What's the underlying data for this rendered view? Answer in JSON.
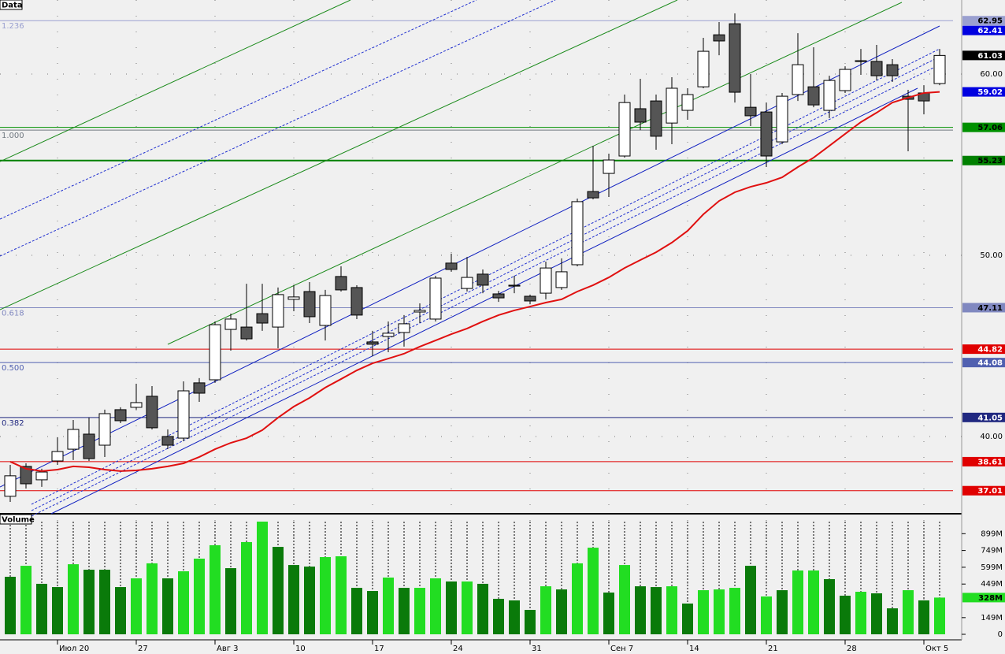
{
  "chart_data": [
    {
      "type": "candlestick",
      "title": "Data",
      "categories": [
        null,
        null,
        null,
        "Июл 20",
        null,
        null,
        null,
        null,
        "27",
        null,
        null,
        null,
        null,
        "Авг 3",
        null,
        null,
        null,
        null,
        "10",
        null,
        null,
        null,
        null,
        "17",
        null,
        null,
        null,
        null,
        "24",
        null,
        null,
        null,
        null,
        "31",
        null,
        null,
        null,
        null,
        "Сен 7",
        null,
        null,
        null,
        null,
        "14",
        null,
        null,
        null,
        null,
        "21",
        null,
        null,
        null,
        null,
        "28",
        null,
        null,
        null,
        null,
        "Окт 5",
        null
      ],
      "open": [
        36.7,
        38.35,
        37.61,
        38.65,
        39.3,
        40.13,
        39.52,
        41.48,
        41.61,
        42.22,
        40.0,
        39.91,
        42.96,
        43.13,
        45.91,
        46.04,
        46.78,
        46.04,
        47.57,
        48.0,
        46.13,
        48.83,
        48.22,
        45.22,
        45.52,
        45.74,
        46.87,
        46.48,
        49.57,
        48.17,
        48.96,
        47.87,
        48.35,
        47.74,
        47.91,
        48.22,
        49.48,
        53.52,
        54.52,
        55.48,
        58.09,
        58.52,
        57.3,
        58.0,
        59.3,
        62.17,
        62.78,
        58.17,
        57.91,
        56.26,
        58.87,
        59.3,
        58.0,
        59.09,
        60.74,
        60.7,
        60.52,
        58.78,
        58.96,
        59.48
      ],
      "high": [
        38.43,
        38.52,
        38.22,
        39.96,
        40.91,
        41.04,
        41.48,
        41.61,
        42.91,
        42.78,
        40.39,
        43.04,
        43.22,
        46.35,
        46.78,
        48.43,
        48.43,
        48.22,
        48.35,
        48.52,
        48.09,
        49.39,
        48.35,
        45.83,
        46.35,
        46.7,
        47.35,
        48.87,
        50.09,
        49.91,
        49.22,
        48.04,
        48.87,
        47.83,
        49.65,
        49.83,
        53.13,
        56.04,
        55.61,
        58.87,
        59.74,
        58.87,
        59.83,
        59.22,
        62.0,
        62.87,
        63.35,
        60.0,
        58.43,
        58.96,
        62.26,
        61.48,
        59.91,
        60.43,
        61.39,
        61.61,
        60.83,
        59.13,
        59.39,
        61.39
      ],
      "low": [
        36.39,
        37.13,
        37.22,
        38.43,
        38.7,
        38.65,
        38.87,
        40.74,
        41.48,
        40.39,
        39.3,
        39.74,
        41.91,
        42.96,
        44.74,
        45.3,
        45.83,
        44.87,
        46.91,
        46.26,
        45.3,
        48.0,
        46.48,
        44.43,
        44.65,
        44.96,
        46.26,
        46.35,
        49.09,
        48.0,
        47.91,
        47.43,
        47.91,
        47.3,
        47.57,
        48.09,
        49.39,
        53.09,
        53.22,
        55.39,
        56.91,
        55.83,
        56.13,
        57.48,
        59.22,
        61.04,
        58.43,
        57.13,
        54.87,
        56.13,
        58.52,
        58.17,
        57.57,
        58.96,
        59.96,
        59.65,
        59.57,
        55.74,
        57.78,
        59.39
      ],
      "close": [
        37.83,
        37.39,
        38.04,
        39.17,
        40.39,
        38.78,
        41.26,
        40.87,
        41.87,
        40.48,
        39.52,
        42.52,
        42.39,
        46.17,
        46.48,
        45.39,
        46.26,
        47.83,
        47.7,
        46.61,
        47.78,
        48.09,
        46.7,
        45.09,
        45.7,
        46.22,
        46.96,
        48.74,
        49.22,
        48.78,
        48.35,
        47.65,
        48.3,
        47.48,
        49.3,
        49.09,
        52.96,
        53.17,
        55.26,
        58.43,
        57.35,
        56.57,
        59.22,
        58.87,
        61.26,
        61.83,
        59.0,
        57.7,
        55.48,
        58.78,
        60.52,
        58.3,
        59.65,
        60.26,
        60.7,
        59.91,
        59.91,
        58.61,
        58.52,
        61.03
      ],
      "up_color": "#ffffff",
      "down_color": "#555555",
      "ma": {
        "color": "#e01010",
        "values": [
          38.61,
          38.22,
          38.09,
          38.17,
          38.35,
          38.3,
          38.17,
          38.09,
          38.13,
          38.22,
          38.35,
          38.52,
          38.87,
          39.3,
          39.65,
          39.91,
          40.35,
          41.04,
          41.65,
          42.13,
          42.7,
          43.17,
          43.65,
          44.04,
          44.3,
          44.57,
          44.96,
          45.3,
          45.65,
          45.96,
          46.35,
          46.7,
          46.96,
          47.17,
          47.39,
          47.57,
          48.0,
          48.35,
          48.78,
          49.3,
          49.74,
          50.17,
          50.7,
          51.35,
          52.26,
          53.0,
          53.48,
          53.78,
          54.0,
          54.3,
          54.87,
          55.39,
          56.04,
          56.7,
          57.35,
          57.87,
          58.43,
          58.7,
          58.96,
          59.02
        ]
      },
      "ylim": [
        35.78,
        64.09
      ],
      "yticks": [
        {
          "value": 60,
          "label": "60.00"
        },
        {
          "value": 50,
          "label": "50.00"
        },
        {
          "value": 40,
          "label": "40.00"
        }
      ],
      "grid": true,
      "levels": [
        {
          "value": 62.95,
          "color": "#9aa0d0",
          "label": "1.236",
          "box": true,
          "width": 1
        },
        {
          "value": 57.06,
          "color": "#009000",
          "box": true,
          "width": 1
        },
        {
          "value": 56.91,
          "color": "#707880",
          "label": "1.000",
          "box": false,
          "width": 1
        },
        {
          "value": 55.23,
          "color": "#008000",
          "box": true,
          "width": 2
        },
        {
          "value": 47.11,
          "color": "#8088c0",
          "label": "0.618",
          "box": true,
          "width": 1
        },
        {
          "value": 44.82,
          "color": "#e00000",
          "box": true,
          "width": 1
        },
        {
          "value": 44.08,
          "color": "#5060b0",
          "label": "0.500",
          "box": true,
          "width": 1
        },
        {
          "value": 41.05,
          "color": "#202880",
          "label": "0.382",
          "box": true,
          "width": 1
        },
        {
          "value": 38.61,
          "color": "#e00000",
          "box": true,
          "width": 1
        },
        {
          "value": 37.01,
          "color": "#e00000",
          "box": true,
          "width": 1
        }
      ],
      "markers": [
        {
          "value": 62.41,
          "color": "#0000e0"
        }
      ]
    },
    {
      "type": "bar",
      "title": "Volume",
      "values": [
        514,
        612,
        451,
        422,
        626,
        577,
        577,
        422,
        500,
        634,
        500,
        563,
        676,
        796,
        591,
        824,
        1007,
        781,
        619,
        605,
        690,
        697,
        415,
        387,
        507,
        415,
        415,
        500,
        472,
        472,
        451,
        317,
        303,
        218,
        429,
        401,
        634,
        774,
        373,
        619,
        429,
        422,
        429,
        275,
        394,
        401,
        415,
        612,
        338,
        394,
        570,
        570,
        493,
        345,
        380,
        366,
        232,
        394,
        303,
        328
      ],
      "value_labels": [
        null,
        null,
        null,
        null,
        null,
        null,
        null,
        null,
        null,
        null,
        null,
        null,
        null,
        null,
        null,
        null,
        null,
        null,
        null,
        null,
        null,
        null,
        null,
        null,
        null,
        null,
        null,
        null,
        null,
        null,
        null,
        null,
        null,
        null,
        null,
        null,
        null,
        null,
        null,
        null,
        null,
        null,
        null,
        null,
        null,
        null,
        null,
        null,
        null,
        null,
        null,
        null,
        null,
        null,
        null,
        null,
        null,
        null,
        null,
        "328M"
      ],
      "colors": [
        "#0a7a0a",
        "#22dd22",
        "#0a7a0a",
        "#0a7a0a",
        "#22dd22",
        "#0a7a0a",
        "#0a7a0a",
        "#0a7a0a",
        "#22dd22",
        "#22dd22",
        "#0a7a0a",
        "#22dd22",
        "#22dd22",
        "#22dd22",
        "#0a7a0a",
        "#22dd22",
        "#22dd22",
        "#0a7a0a",
        "#0a7a0a",
        "#0a7a0a",
        "#22dd22",
        "#22dd22",
        "#0a7a0a",
        "#0a7a0a",
        "#22dd22",
        "#0a7a0a",
        "#22dd22",
        "#22dd22",
        "#0a7a0a",
        "#22dd22",
        "#0a7a0a",
        "#0a7a0a",
        "#0a7a0a",
        "#0a7a0a",
        "#22dd22",
        "#0a7a0a",
        "#22dd22",
        "#22dd22",
        "#0a7a0a",
        "#22dd22",
        "#0a7a0a",
        "#0a7a0a",
        "#22dd22",
        "#0a7a0a",
        "#22dd22",
        "#22dd22",
        "#22dd22",
        "#0a7a0a",
        "#22dd22",
        "#0a7a0a",
        "#22dd22",
        "#22dd22",
        "#0a7a0a",
        "#0a7a0a",
        "#22dd22",
        "#0a7a0a",
        "#0a7a0a",
        "#22dd22",
        "#0a7a0a",
        "#22dd22"
      ],
      "ylim": [
        0,
        1056
      ],
      "yticks": [
        {
          "value": 899,
          "label": "899M"
        },
        {
          "value": 749,
          "label": "749M"
        },
        {
          "value": 599,
          "label": "599M"
        },
        {
          "value": 449,
          "label": "449M"
        },
        {
          "value": 149,
          "label": "149M"
        },
        0
      ]
    }
  ]
}
